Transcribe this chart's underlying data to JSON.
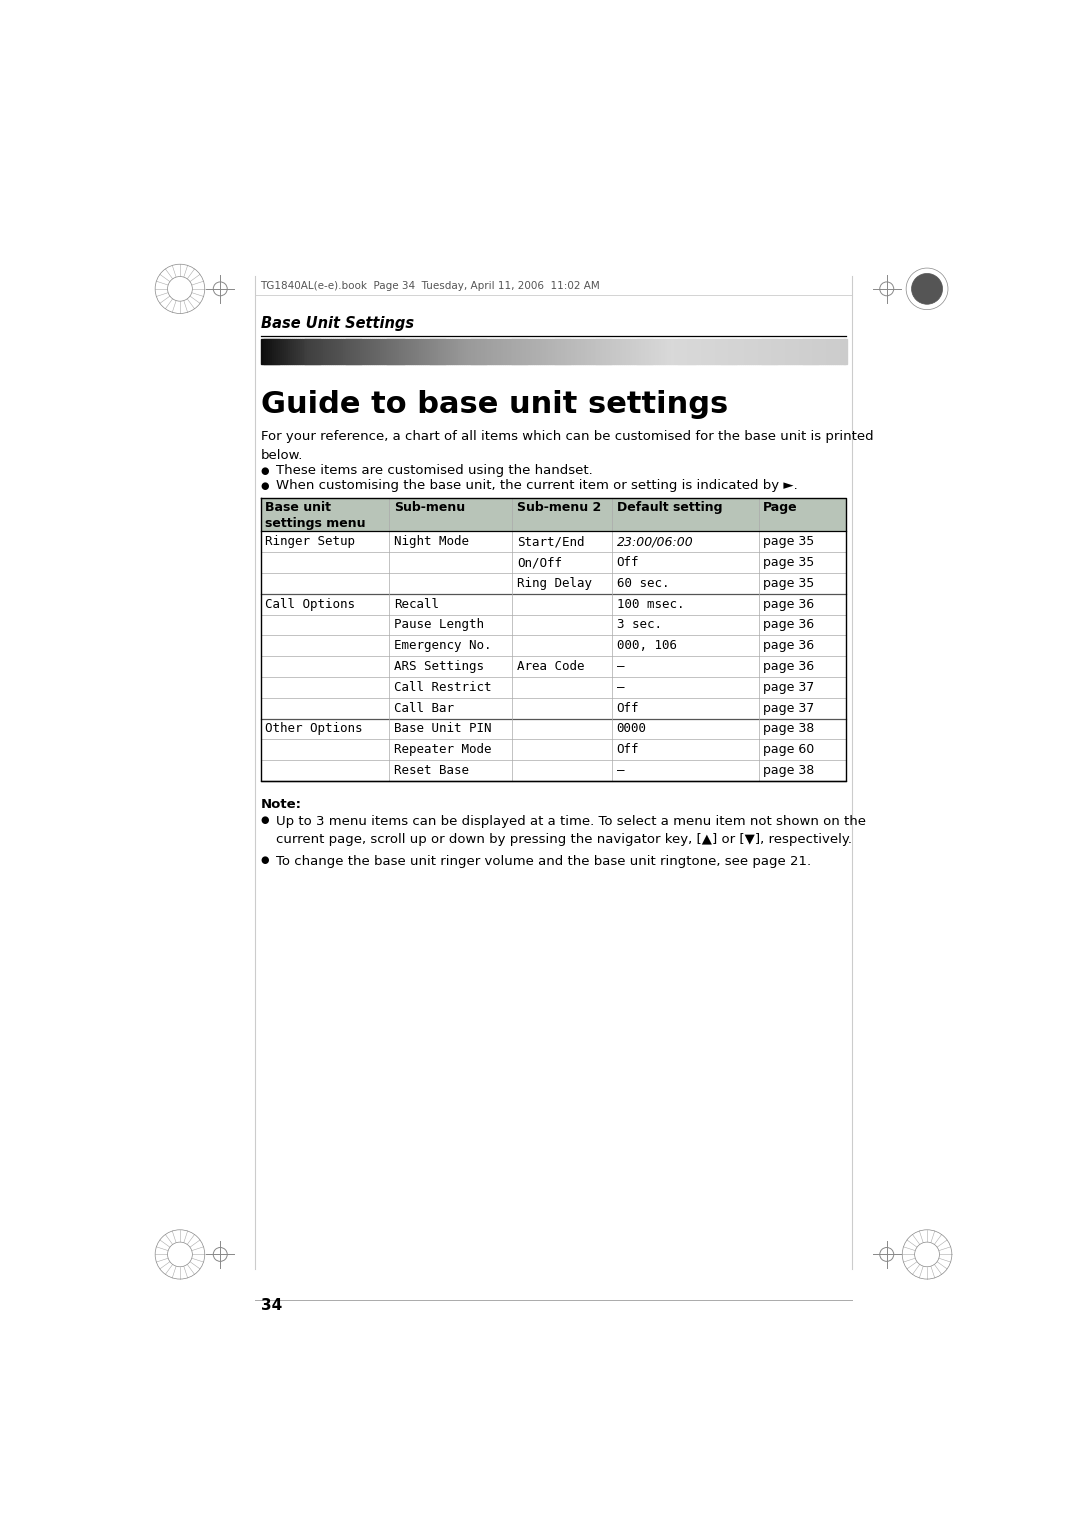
{
  "page_bg": "#ffffff",
  "header_text": "TG1840AL(e-e).book  Page 34  Tuesday, April 11, 2006  11:02 AM",
  "section_title": "Base Unit Settings",
  "main_title": "Guide to base unit settings",
  "intro_text": "For your reference, a chart of all items which can be customised for the base unit is printed\nbelow.",
  "bullet1": "These items are customised using the handset.",
  "bullet2": "When customising the base unit, the current item or setting is indicated by ►.",
  "table_header": [
    "Base unit\nsettings menu",
    "Sub-menu",
    "Sub-menu 2",
    "Default setting",
    "Page"
  ],
  "table_rows": [
    [
      "Ringer Setup",
      "Night Mode",
      "Start/End",
      "23:00/06:00",
      "page 35"
    ],
    [
      "",
      "",
      "On/Off",
      "Off",
      "page 35"
    ],
    [
      "",
      "",
      "Ring Delay",
      "60 sec.",
      "page 35"
    ],
    [
      "Call Options",
      "Recall",
      "",
      "100 msec.",
      "page 36"
    ],
    [
      "",
      "Pause Length",
      "",
      "3 sec.",
      "page 36"
    ],
    [
      "",
      "Emergency No.",
      "",
      "000, 106",
      "page 36"
    ],
    [
      "",
      "ARS Settings",
      "Area Code",
      "—",
      "page 36"
    ],
    [
      "",
      "Call Restrict",
      "",
      "—",
      "page 37"
    ],
    [
      "",
      "Call Bar",
      "",
      "Off",
      "page 37"
    ],
    [
      "Other Options",
      "Base Unit PIN",
      "",
      "0000",
      "page 38"
    ],
    [
      "",
      "Repeater Mode",
      "",
      "Off",
      "page 60"
    ],
    [
      "",
      "Reset Base",
      "",
      "—",
      "page 38"
    ]
  ],
  "note_title": "Note:",
  "note1": "Up to 3 menu items can be displayed at a time. To select a menu item not shown on the\ncurrent page, scroll up or down by pressing the navigator key, [▲] or [▼], respectively.",
  "note2": "To change the base unit ringer volume and the base unit ringtone, see page 21.",
  "page_number": "34",
  "header_col_bg": "#b8c4b8",
  "section_separators": [
    3,
    9
  ]
}
